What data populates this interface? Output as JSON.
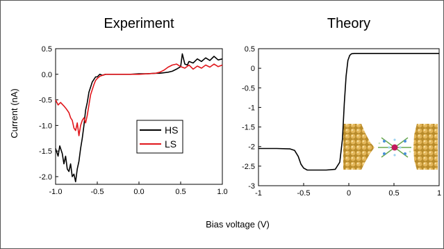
{
  "figure": {
    "shared_xlabel": "Bias voltage (V)"
  },
  "chart_data": [
    {
      "type": "line",
      "title": "Experiment",
      "xlabel": "",
      "ylabel": "Current (nA)",
      "xlim": [
        -1.0,
        1.0
      ],
      "ylim": [
        -2.15,
        0.5
      ],
      "xticks": [
        -1.0,
        -0.5,
        0.0,
        0.5,
        1.0
      ],
      "xtick_labels": [
        "-1.0",
        "-0.5",
        "0.0",
        "0.5",
        "1.0"
      ],
      "yticks": [
        0.5,
        0.0,
        -0.5,
        -1.0,
        -1.5,
        -2.0
      ],
      "ytick_labels": [
        "0.5",
        "0.0",
        "-0.5",
        "-1.0",
        "-1.5",
        "-2.0"
      ],
      "legend_position": "center-right",
      "series": [
        {
          "name": "HS",
          "color": "#000000",
          "x": [
            -1.0,
            -0.97,
            -0.95,
            -0.92,
            -0.9,
            -0.88,
            -0.86,
            -0.84,
            -0.82,
            -0.8,
            -0.78,
            -0.76,
            -0.74,
            -0.72,
            -0.7,
            -0.68,
            -0.66,
            -0.64,
            -0.62,
            -0.6,
            -0.58,
            -0.56,
            -0.54,
            -0.52,
            -0.5,
            -0.47,
            -0.44,
            -0.4,
            -0.35,
            -0.3,
            -0.2,
            -0.1,
            0.0,
            0.1,
            0.2,
            0.25,
            0.3,
            0.35,
            0.4,
            0.45,
            0.5,
            0.52,
            0.55,
            0.58,
            0.6,
            0.65,
            0.7,
            0.75,
            0.8,
            0.85,
            0.9,
            0.95,
            1.0
          ],
          "y": [
            -1.45,
            -1.6,
            -1.4,
            -1.55,
            -1.75,
            -1.6,
            -1.85,
            -1.9,
            -1.75,
            -2.0,
            -1.95,
            -2.1,
            -1.85,
            -1.7,
            -1.45,
            -1.25,
            -1.0,
            -0.7,
            -0.55,
            -0.35,
            -0.25,
            -0.15,
            -0.1,
            -0.05,
            -0.05,
            0.0,
            -0.02,
            0.0,
            0.0,
            0.0,
            0.0,
            0.0,
            0.01,
            0.01,
            0.02,
            0.02,
            0.03,
            0.04,
            0.06,
            0.1,
            0.15,
            0.4,
            0.2,
            0.18,
            0.25,
            0.22,
            0.3,
            0.25,
            0.32,
            0.27,
            0.35,
            0.28,
            0.3
          ]
        },
        {
          "name": "LS",
          "color": "#e0161b",
          "x": [
            -1.0,
            -0.97,
            -0.94,
            -0.9,
            -0.87,
            -0.84,
            -0.82,
            -0.8,
            -0.78,
            -0.76,
            -0.74,
            -0.72,
            -0.7,
            -0.68,
            -0.66,
            -0.64,
            -0.62,
            -0.6,
            -0.58,
            -0.56,
            -0.54,
            -0.52,
            -0.5,
            -0.47,
            -0.44,
            -0.4,
            -0.35,
            -0.3,
            -0.2,
            -0.1,
            0.0,
            0.1,
            0.2,
            0.25,
            0.3,
            0.35,
            0.4,
            0.45,
            0.5,
            0.55,
            0.6,
            0.65,
            0.7,
            0.75,
            0.8,
            0.85,
            0.9,
            0.95,
            1.0
          ],
          "y": [
            -0.5,
            -0.6,
            -0.55,
            -0.62,
            -0.68,
            -0.75,
            -0.85,
            -0.9,
            -1.05,
            -1.1,
            -0.95,
            -1.2,
            -1.0,
            -0.9,
            -0.85,
            -0.95,
            -0.8,
            -0.6,
            -0.4,
            -0.3,
            -0.2,
            -0.12,
            -0.08,
            -0.04,
            -0.02,
            0.0,
            0.0,
            0.0,
            0.0,
            0.0,
            0.0,
            0.01,
            0.02,
            0.04,
            0.08,
            0.14,
            0.18,
            0.2,
            0.15,
            0.12,
            0.18,
            0.1,
            0.16,
            0.12,
            0.18,
            0.14,
            0.2,
            0.15,
            0.18
          ]
        }
      ]
    },
    {
      "type": "line",
      "title": "Theory",
      "xlabel": "",
      "ylabel": "",
      "xlim": [
        -1,
        1
      ],
      "ylim": [
        -3,
        0.5
      ],
      "xticks": [
        -1,
        -0.5,
        0,
        0.5,
        1
      ],
      "xtick_labels": [
        "-1",
        "-0.5",
        "0",
        "0.5",
        "1"
      ],
      "yticks": [
        0.5,
        0,
        -0.5,
        -1,
        -1.5,
        -2,
        -2.5,
        -3
      ],
      "ytick_labels": [
        "0.5",
        "0",
        "-0.5",
        "-1",
        "-1.5",
        "-2",
        "-2.5",
        "-3"
      ],
      "inset": "molecular junction illustration between gold electrodes",
      "series": [
        {
          "color": "#000000",
          "x": [
            -1.0,
            -0.8,
            -0.65,
            -0.6,
            -0.56,
            -0.53,
            -0.5,
            -0.46,
            -0.42,
            -0.35,
            -0.25,
            -0.15,
            -0.1,
            -0.07,
            -0.05,
            -0.03,
            -0.01,
            0.01,
            0.03,
            0.06,
            0.1,
            0.2,
            0.4,
            0.6,
            0.8,
            1.0
          ],
          "y": [
            -2.05,
            -2.05,
            -2.06,
            -2.1,
            -2.25,
            -2.45,
            -2.55,
            -2.6,
            -2.6,
            -2.6,
            -2.6,
            -2.58,
            -2.4,
            -1.8,
            -0.9,
            -0.2,
            0.2,
            0.33,
            0.37,
            0.38,
            0.38,
            0.38,
            0.38,
            0.38,
            0.38,
            0.38
          ]
        }
      ]
    }
  ]
}
